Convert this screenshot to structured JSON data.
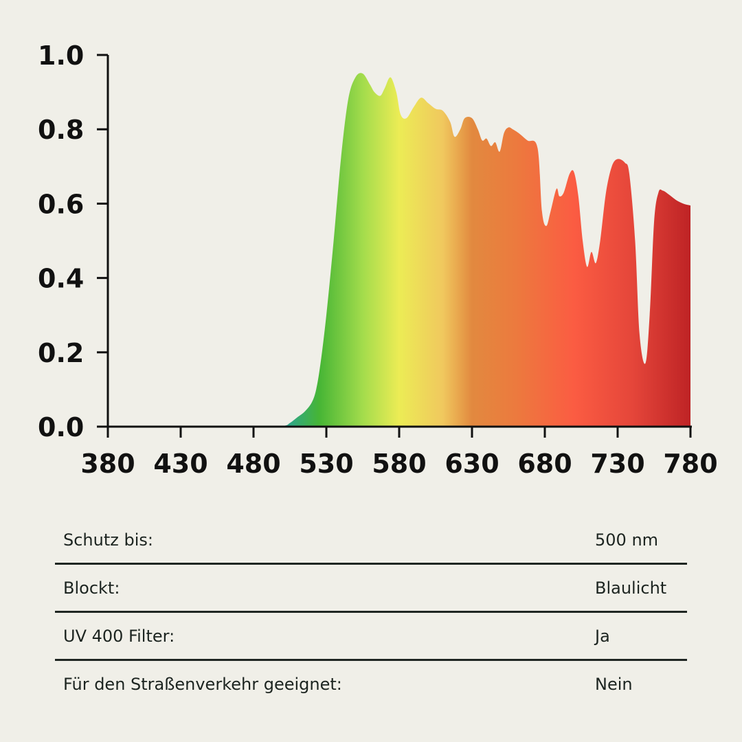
{
  "chart_data": {
    "type": "area",
    "x_ticks": [
      "380",
      "430",
      "480",
      "530",
      "580",
      "630",
      "680",
      "730",
      "780"
    ],
    "y_ticks": [
      "0.0",
      "0.2",
      "0.4",
      "0.6",
      "0.8",
      "1.0"
    ],
    "xlim": [
      380,
      780
    ],
    "ylim": [
      0,
      1
    ],
    "grid": false,
    "x": [
      380,
      400,
      420,
      440,
      460,
      480,
      500,
      505,
      510,
      515,
      520,
      523,
      526,
      530,
      535,
      540,
      545,
      550,
      555,
      560,
      563,
      567,
      570,
      574,
      578,
      581,
      585,
      590,
      595,
      600,
      605,
      610,
      615,
      618,
      622,
      625,
      630,
      634,
      637,
      640,
      643,
      646,
      649,
      652,
      655,
      658,
      662,
      668,
      675,
      678,
      681,
      684,
      688,
      690,
      693,
      697,
      700,
      703,
      706,
      709,
      712,
      715,
      718,
      722,
      726,
      730,
      735,
      738,
      742,
      745,
      749,
      752,
      755,
      758,
      761,
      765,
      770,
      775,
      780
    ],
    "values": [
      0,
      0,
      0,
      0,
      0,
      0,
      0.002,
      0.01,
      0.025,
      0.04,
      0.065,
      0.1,
      0.17,
      0.3,
      0.5,
      0.72,
      0.88,
      0.94,
      0.95,
      0.92,
      0.9,
      0.89,
      0.91,
      0.94,
      0.9,
      0.84,
      0.83,
      0.86,
      0.885,
      0.87,
      0.855,
      0.85,
      0.82,
      0.78,
      0.8,
      0.83,
      0.83,
      0.8,
      0.77,
      0.775,
      0.755,
      0.765,
      0.74,
      0.79,
      0.805,
      0.8,
      0.79,
      0.77,
      0.75,
      0.58,
      0.54,
      0.58,
      0.64,
      0.62,
      0.63,
      0.68,
      0.685,
      0.62,
      0.5,
      0.43,
      0.47,
      0.44,
      0.5,
      0.63,
      0.7,
      0.72,
      0.71,
      0.68,
      0.5,
      0.25,
      0.17,
      0.3,
      0.55,
      0.63,
      0.635,
      0.625,
      0.61,
      0.6,
      0.595
    ],
    "gradient_stops": [
      {
        "nm": 500,
        "color": "#2aa39a"
      },
      {
        "nm": 525,
        "color": "#46b535"
      },
      {
        "nm": 555,
        "color": "#a3dc4c"
      },
      {
        "nm": 580,
        "color": "#ecec55"
      },
      {
        "nm": 610,
        "color": "#f0c85e"
      },
      {
        "nm": 630,
        "color": "#e2893f"
      },
      {
        "nm": 660,
        "color": "#ec7a3e"
      },
      {
        "nm": 700,
        "color": "#fb5c42"
      },
      {
        "nm": 740,
        "color": "#e5463a"
      },
      {
        "nm": 780,
        "color": "#be2325"
      }
    ]
  },
  "specs": [
    {
      "label": "Schutz bis:",
      "value": "500 nm"
    },
    {
      "label": "Blockt:",
      "value": "Blaulicht"
    },
    {
      "label": "UV 400 Filter:",
      "value": "Ja"
    },
    {
      "label": "Für den Straßenverkehr geeignet:",
      "value": "Nein"
    }
  ]
}
